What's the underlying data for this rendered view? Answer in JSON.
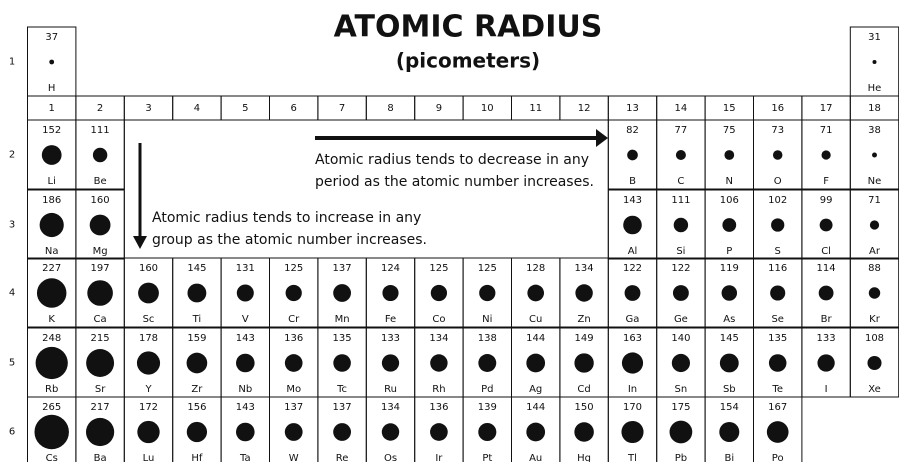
{
  "title": "ATOMIC RADIUS",
  "subtitle": "(picometers)",
  "groups": [
    1,
    2,
    3,
    4,
    5,
    6,
    7,
    8,
    9,
    10,
    11,
    12,
    13,
    14,
    15,
    16,
    17,
    18
  ],
  "annotations": [
    {
      "lines": [
        "Atomic radius tends to decrease in any",
        "period as the atomic number increases."
      ]
    },
    {
      "lines": [
        "Atomic radius tends to increase in any",
        "group as the atomic number increases."
      ]
    }
  ],
  "periods": [
    {
      "label": 1,
      "cells": [
        {
          "symbol": "H",
          "radius": 37
        },
        null,
        null,
        null,
        null,
        null,
        null,
        null,
        null,
        null,
        null,
        null,
        null,
        null,
        null,
        null,
        null,
        {
          "symbol": "He",
          "radius": 31
        }
      ]
    },
    {
      "label": 2,
      "cells": [
        {
          "symbol": "Li",
          "radius": 152
        },
        {
          "symbol": "Be",
          "radius": 111
        },
        null,
        null,
        null,
        null,
        null,
        null,
        null,
        null,
        null,
        null,
        {
          "symbol": "B",
          "radius": 82
        },
        {
          "symbol": "C",
          "radius": 77
        },
        {
          "symbol": "N",
          "radius": 75
        },
        {
          "symbol": "O",
          "radius": 73
        },
        {
          "symbol": "F",
          "radius": 71
        },
        {
          "symbol": "Ne",
          "radius": 38
        }
      ]
    },
    {
      "label": 3,
      "cells": [
        {
          "symbol": "Na",
          "radius": 186
        },
        {
          "symbol": "Mg",
          "radius": 160
        },
        null,
        null,
        null,
        null,
        null,
        null,
        null,
        null,
        null,
        null,
        {
          "symbol": "Al",
          "radius": 143
        },
        {
          "symbol": "Si",
          "radius": 111
        },
        {
          "symbol": "P",
          "radius": 106
        },
        {
          "symbol": "S",
          "radius": 102
        },
        {
          "symbol": "Cl",
          "radius": 99
        },
        {
          "symbol": "Ar",
          "radius": 71
        }
      ]
    },
    {
      "label": 4,
      "cells": [
        {
          "symbol": "K",
          "radius": 227
        },
        {
          "symbol": "Ca",
          "radius": 197
        },
        {
          "symbol": "Sc",
          "radius": 160
        },
        {
          "symbol": "Ti",
          "radius": 145
        },
        {
          "symbol": "V",
          "radius": 131
        },
        {
          "symbol": "Cr",
          "radius": 125
        },
        {
          "symbol": "Mn",
          "radius": 137
        },
        {
          "symbol": "Fe",
          "radius": 124
        },
        {
          "symbol": "Co",
          "radius": 125
        },
        {
          "symbol": "Ni",
          "radius": 125
        },
        {
          "symbol": "Cu",
          "radius": 128
        },
        {
          "symbol": "Zn",
          "radius": 134
        },
        {
          "symbol": "Ga",
          "radius": 122
        },
        {
          "symbol": "Ge",
          "radius": 122
        },
        {
          "symbol": "As",
          "radius": 119
        },
        {
          "symbol": "Se",
          "radius": 116
        },
        {
          "symbol": "Br",
          "radius": 114
        },
        {
          "symbol": "Kr",
          "radius": 88
        }
      ]
    },
    {
      "label": 5,
      "cells": [
        {
          "symbol": "Rb",
          "radius": 248
        },
        {
          "symbol": "Sr",
          "radius": 215
        },
        {
          "symbol": "Y",
          "radius": 178
        },
        {
          "symbol": "Zr",
          "radius": 159
        },
        {
          "symbol": "Nb",
          "radius": 143
        },
        {
          "symbol": "Mo",
          "radius": 136
        },
        {
          "symbol": "Tc",
          "radius": 135
        },
        {
          "symbol": "Ru",
          "radius": 133
        },
        {
          "symbol": "Rh",
          "radius": 134
        },
        {
          "symbol": "Pd",
          "radius": 138
        },
        {
          "symbol": "Ag",
          "radius": 144
        },
        {
          "symbol": "Cd",
          "radius": 149
        },
        {
          "symbol": "In",
          "radius": 163
        },
        {
          "symbol": "Sn",
          "radius": 140
        },
        {
          "symbol": "Sb",
          "radius": 145
        },
        {
          "symbol": "Te",
          "radius": 135
        },
        {
          "symbol": "I",
          "radius": 133
        },
        {
          "symbol": "Xe",
          "radius": 108
        }
      ]
    },
    {
      "label": 6,
      "cells": [
        {
          "symbol": "Cs",
          "radius": 265
        },
        {
          "symbol": "Ba",
          "radius": 217
        },
        {
          "symbol": "Lu",
          "radius": 172
        },
        {
          "symbol": "Hf",
          "radius": 156
        },
        {
          "symbol": "Ta",
          "radius": 143
        },
        {
          "symbol": "W",
          "radius": 137
        },
        {
          "symbol": "Re",
          "radius": 137
        },
        {
          "symbol": "Os",
          "radius": 134
        },
        {
          "symbol": "Ir",
          "radius": 136
        },
        {
          "symbol": "Pt",
          "radius": 139
        },
        {
          "symbol": "Au",
          "radius": 144
        },
        {
          "symbol": "Hg",
          "radius": 150
        },
        {
          "symbol": "Tl",
          "radius": 170
        },
        {
          "symbol": "Pb",
          "radius": 175
        },
        {
          "symbol": "Bi",
          "radius": 154
        },
        {
          "symbol": "Po",
          "radius": 167
        },
        null,
        null
      ]
    }
  ]
}
